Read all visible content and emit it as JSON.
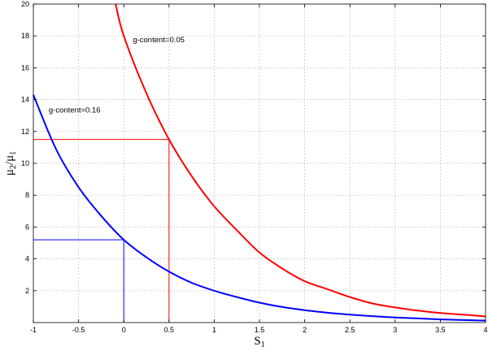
{
  "chart_data": {
    "type": "line",
    "title": "",
    "xlabel": "S",
    "xlabel_sub": "1",
    "ylabel_parts": [
      "μ",
      "2",
      "/μ",
      "1"
    ],
    "xlim": [
      -1,
      4
    ],
    "ylim": [
      0,
      20
    ],
    "xticks": [
      -1,
      -0.5,
      0,
      0.5,
      1,
      1.5,
      2,
      2.5,
      3,
      3.5,
      4
    ],
    "xtick_labels": [
      "-1",
      "-0.5",
      "0",
      "0.5",
      "1",
      "1.5",
      "2",
      "2.5",
      "3",
      "3.5",
      "4"
    ],
    "yticks": [
      2,
      4,
      6,
      8,
      10,
      12,
      14,
      16,
      18,
      20
    ],
    "ytick_labels": [
      "2",
      "4",
      "6",
      "8",
      "10",
      "12",
      "14",
      "16",
      "18",
      "20"
    ],
    "grid": true,
    "series": [
      {
        "color": "#ff0000",
        "x": [
          -0.09,
          0,
          0.25,
          0.5,
          0.75,
          1,
          1.25,
          1.5,
          1.75,
          2,
          2.25,
          2.5,
          2.75,
          3,
          3.25,
          3.5,
          3.75,
          4
        ],
        "y": [
          20.0,
          18.0,
          14.4,
          11.5,
          9.2,
          7.3,
          5.8,
          4.4,
          3.4,
          2.6,
          2.1,
          1.6,
          1.2,
          0.95,
          0.75,
          0.6,
          0.5,
          0.38
        ]
      },
      {
        "color": "#0000ff",
        "x": [
          -1,
          -0.75,
          -0.5,
          -0.25,
          0,
          0.25,
          0.5,
          0.75,
          1,
          1.25,
          1.5,
          1.75,
          2,
          2.25,
          2.5,
          2.75,
          3,
          3.25,
          3.5,
          3.75,
          4
        ],
        "y": [
          14.3,
          10.9,
          8.5,
          6.7,
          5.2,
          4.1,
          3.2,
          2.5,
          2.0,
          1.6,
          1.25,
          0.98,
          0.78,
          0.62,
          0.5,
          0.4,
          0.32,
          0.26,
          0.2,
          0.16,
          0.12
        ]
      }
    ],
    "reference_lines": [
      {
        "color": "#ff0000",
        "x": 0.5,
        "y": 11.5
      },
      {
        "color": "#0000ff",
        "x": 0,
        "y": 5.2
      }
    ],
    "annotations": [
      {
        "text": "g-content=0.05",
        "x": 0.1,
        "y": 17.6
      },
      {
        "text": "g-content=0.16",
        "x": -0.83,
        "y": 13.2
      }
    ]
  }
}
